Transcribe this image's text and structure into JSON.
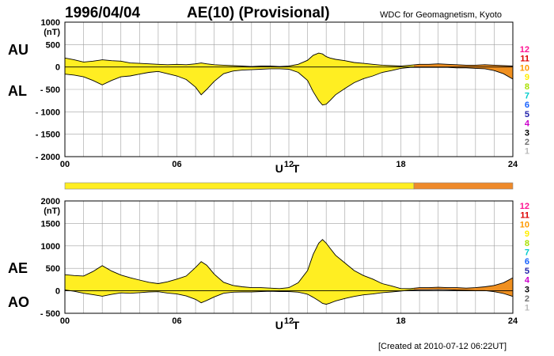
{
  "header": {
    "date": "1996/04/04",
    "title": "AE(10) (Provisional)",
    "source": "WDC for Geomagnetism, Kyoto"
  },
  "footer": {
    "created": "[Created at 2010-07-12 06:22UT]"
  },
  "colors": {
    "grid": "#a0a0a0",
    "fill_level_10": "#ffee22",
    "fill_level_11": "#f09020",
    "bar_level_10": "#ffee22",
    "bar_level_11": "#ee8a2a"
  },
  "level_scale": {
    "labels": [
      "12",
      "11",
      "10",
      "9",
      "8",
      "7",
      "6",
      "5",
      "4",
      "3",
      "2",
      "1"
    ],
    "colors": [
      "#ff1493",
      "#dd0000",
      "#ff9900",
      "#ffee00",
      "#a8e000",
      "#00cccc",
      "#1560ff",
      "#2222aa",
      "#cc00cc",
      "#000000",
      "#707070",
      "#bbbbbb"
    ]
  },
  "quality_bar": {
    "segments": [
      {
        "from": 0,
        "to": 18.7,
        "level": "10",
        "color": "#ffee22"
      },
      {
        "from": 18.7,
        "to": 24,
        "level": "11",
        "color": "#ee8a2a"
      }
    ]
  },
  "chart_data": [
    {
      "type": "area",
      "panel": "AU/AL",
      "series_labels": [
        "AU",
        "AL"
      ],
      "ylabel": "(nT)",
      "xlabel": "U T",
      "x_tick_labels": [
        "00",
        "06",
        "12",
        "18",
        "24"
      ],
      "y_tick_labels": [
        "1000",
        "500",
        "0",
        "- 500",
        "- 1000",
        "- 1500",
        "- 2000"
      ],
      "xlim": [
        0,
        24
      ],
      "ylim": [
        -2000,
        1000
      ],
      "grid": true,
      "x": [
        0,
        0.5,
        1,
        1.5,
        2,
        2.5,
        3,
        3.5,
        4,
        4.5,
        5,
        5.5,
        6,
        6.5,
        7,
        7.3,
        7.6,
        8,
        8.5,
        9,
        9.5,
        10,
        10.5,
        11,
        11.5,
        12,
        12.5,
        13,
        13.3,
        13.6,
        13.8,
        14,
        14.2,
        14.5,
        15,
        15.5,
        16,
        16.5,
        17,
        17.5,
        18,
        18.5,
        19,
        19.5,
        20,
        20.5,
        21,
        21.5,
        22,
        22.5,
        23,
        23.5,
        24
      ],
      "series": [
        {
          "name": "AU",
          "values": [
            200,
            160,
            110,
            130,
            160,
            140,
            130,
            90,
            80,
            70,
            60,
            50,
            60,
            50,
            70,
            90,
            70,
            50,
            40,
            30,
            20,
            10,
            20,
            20,
            10,
            20,
            60,
            150,
            260,
            310,
            290,
            230,
            200,
            170,
            140,
            100,
            80,
            60,
            40,
            30,
            20,
            40,
            60,
            60,
            70,
            60,
            50,
            40,
            40,
            50,
            40,
            30,
            20
          ]
        },
        {
          "name": "AL",
          "values": [
            -160,
            -180,
            -220,
            -300,
            -400,
            -300,
            -220,
            -200,
            -160,
            -120,
            -100,
            -150,
            -200,
            -280,
            -450,
            -620,
            -500,
            -320,
            -150,
            -90,
            -70,
            -60,
            -50,
            -40,
            -40,
            -50,
            -120,
            -300,
            -550,
            -750,
            -850,
            -830,
            -750,
            -620,
            -480,
            -350,
            -260,
            -200,
            -120,
            -80,
            -30,
            -10,
            -10,
            -10,
            -10,
            -10,
            -20,
            -20,
            -30,
            -40,
            -80,
            -150,
            -270
          ]
        }
      ]
    },
    {
      "type": "area",
      "panel": "AE/AO",
      "series_labels": [
        "AE",
        "AO"
      ],
      "ylabel": "(nT)",
      "xlabel": "U T",
      "x_tick_labels": [
        "00",
        "06",
        "12",
        "18",
        "24"
      ],
      "y_tick_labels": [
        "2000",
        "1500",
        "1000",
        "500",
        "0",
        "- 500"
      ],
      "xlim": [
        0,
        24
      ],
      "ylim": [
        -500,
        2000
      ],
      "grid": true,
      "x": [
        0,
        0.5,
        1,
        1.5,
        2,
        2.5,
        3,
        3.5,
        4,
        4.5,
        5,
        5.5,
        6,
        6.5,
        7,
        7.3,
        7.6,
        8,
        8.5,
        9,
        9.5,
        10,
        10.5,
        11,
        11.5,
        12,
        12.5,
        13,
        13.3,
        13.6,
        13.8,
        14,
        14.2,
        14.5,
        15,
        15.5,
        16,
        16.5,
        17,
        17.5,
        18,
        18.5,
        19,
        19.5,
        20,
        20.5,
        21,
        21.5,
        22,
        22.5,
        23,
        23.5,
        24
      ],
      "series": [
        {
          "name": "AE",
          "values": [
            360,
            340,
            330,
            430,
            560,
            440,
            350,
            290,
            240,
            190,
            160,
            200,
            260,
            330,
            520,
            650,
            570,
            370,
            190,
            120,
            90,
            70,
            70,
            60,
            50,
            70,
            180,
            450,
            810,
            1060,
            1140,
            1060,
            950,
            790,
            620,
            450,
            340,
            260,
            160,
            110,
            50,
            50,
            70,
            70,
            80,
            70,
            70,
            60,
            70,
            90,
            120,
            180,
            290
          ]
        },
        {
          "name": "AO",
          "values": [
            20,
            -10,
            -55,
            -85,
            -120,
            -80,
            -45,
            -55,
            -40,
            -25,
            -20,
            -50,
            -70,
            -115,
            -190,
            -265,
            -215,
            -135,
            -55,
            -30,
            -25,
            -25,
            -15,
            -10,
            -15,
            -15,
            -30,
            -75,
            -145,
            -220,
            -280,
            -300,
            -275,
            -225,
            -170,
            -125,
            -90,
            -70,
            -40,
            -25,
            -5,
            15,
            25,
            25,
            30,
            25,
            15,
            10,
            5,
            5,
            -20,
            -60,
            -125
          ]
        }
      ]
    }
  ]
}
